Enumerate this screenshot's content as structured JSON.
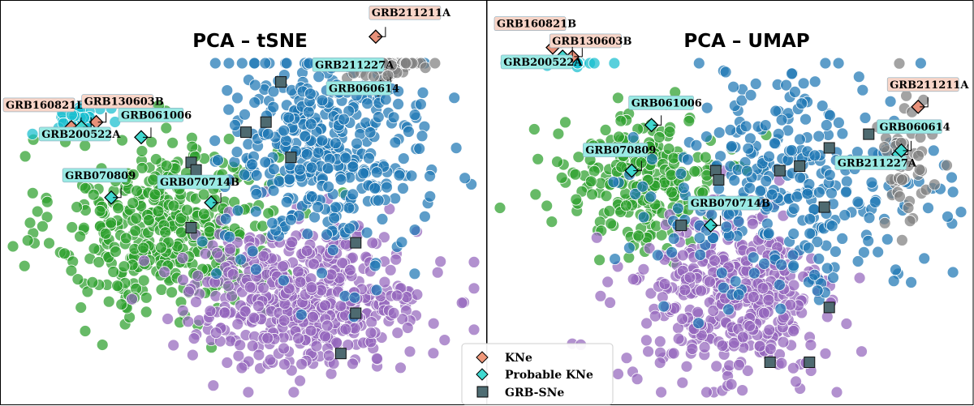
{
  "chart_data": [
    {
      "type": "scatter",
      "title": "PCA – tSNE",
      "xlabel": "",
      "ylabel": "",
      "grid": false,
      "legend_placement": "bottom-center",
      "clusters": [
        {
          "color": "#2ca02c",
          "center": [
            -18,
            -8
          ],
          "spread": [
            11,
            9
          ],
          "count": 440
        },
        {
          "color": "#9467bd",
          "center": [
            10,
            -22
          ],
          "spread": [
            12,
            7
          ],
          "count": 520
        },
        {
          "color": "#1f77b4",
          "center": [
            14,
            8
          ],
          "spread": [
            10,
            11
          ],
          "count": 430
        },
        {
          "color": "#7f7f7f",
          "center": [
            26,
            26
          ],
          "spread": [
            4,
            3
          ],
          "count": 55
        },
        {
          "color": "#17becf",
          "center": [
            -35,
            14
          ],
          "spread": [
            2.5,
            1.2
          ],
          "count": 35
        }
      ],
      "kne": [
        {
          "label": "GRB211211A",
          "x": 24,
          "y": 30
        },
        {
          "label": "GRB160821B",
          "x": -37,
          "y": 12
        },
        {
          "label": "GRB130603B",
          "x": -32,
          "y": 13
        }
      ],
      "probable_kne": [
        {
          "label": "GRB211227A",
          "x": 25,
          "y": 20
        },
        {
          "label": "GRB060614",
          "x": 24.5,
          "y": 19.5
        },
        {
          "label": "GRB200522A",
          "x": -35,
          "y": 12
        },
        {
          "label": "GRB061006",
          "x": -23,
          "y": 10
        },
        {
          "label": "GRB070809",
          "x": -29,
          "y": -2
        },
        {
          "label": "GRB070714B",
          "x": -9,
          "y": -3
        }
      ],
      "grb_sne": [
        {
          "x": 5,
          "y": 21
        },
        {
          "x": 2,
          "y": 13
        },
        {
          "x": -2,
          "y": 11
        },
        {
          "x": 7,
          "y": 6
        },
        {
          "x": -13,
          "y": 5
        },
        {
          "x": -12,
          "y": 3.5
        },
        {
          "x": -13,
          "y": -8
        },
        {
          "x": 20,
          "y": -11
        },
        {
          "x": 20,
          "y": -25
        },
        {
          "x": 17,
          "y": -33
        }
      ]
    },
    {
      "type": "scatter",
      "title": "PCA – UMAP",
      "xlabel": "",
      "ylabel": "",
      "grid": false,
      "legend_placement": "bottom-center",
      "clusters": [
        {
          "color": "#2ca02c",
          "center": [
            -5,
            6
          ],
          "spread": [
            4,
            3.5
          ],
          "count": 240
        },
        {
          "color": "#9467bd",
          "center": [
            4,
            -7
          ],
          "spread": [
            5,
            5
          ],
          "count": 420
        },
        {
          "color": "#1f77b4",
          "center": [
            10,
            5
          ],
          "spread": [
            7,
            6
          ],
          "count": 320
        },
        {
          "color": "#7f7f7f",
          "center": [
            22,
            9
          ],
          "spread": [
            1.5,
            4
          ],
          "count": 50
        },
        {
          "color": "#17becf",
          "center": [
            -13,
            20
          ],
          "spread": [
            2.2,
            0.9
          ],
          "count": 30
        }
      ],
      "kne": [
        {
          "label": "GRB211211A",
          "x": 23,
          "y": 14
        },
        {
          "label": "GRB160821B",
          "x": -14,
          "y": 20.5
        },
        {
          "label": "GRB130603B",
          "x": -12,
          "y": 19.5
        }
      ],
      "probable_kne": [
        {
          "label": "GRB211227A",
          "x": 21,
          "y": 8.8
        },
        {
          "label": "GRB060614",
          "x": 21.3,
          "y": 9.2
        },
        {
          "label": "GRB200522A",
          "x": -13,
          "y": 19.5
        },
        {
          "label": "GRB061006",
          "x": -4,
          "y": 12
        },
        {
          "label": "GRB070809",
          "x": -6,
          "y": 7
        },
        {
          "label": "GRB070714B",
          "x": 2,
          "y": 1
        }
      ],
      "grb_sne": [
        {
          "x": 18,
          "y": 11
        },
        {
          "x": 14,
          "y": 9.5
        },
        {
          "x": 2.5,
          "y": 7
        },
        {
          "x": 2.8,
          "y": 6
        },
        {
          "x": 9,
          "y": 7
        },
        {
          "x": 11,
          "y": 7.5
        },
        {
          "x": 13.5,
          "y": 3
        },
        {
          "x": -1,
          "y": 1
        },
        {
          "x": 14,
          "y": -8
        },
        {
          "x": 8,
          "y": -14
        },
        {
          "x": 12,
          "y": -14
        }
      ]
    }
  ],
  "legend": {
    "items": [
      {
        "label": "KNe",
        "marker": "diamond",
        "color": "#f0987a"
      },
      {
        "label": "Probable KNe",
        "marker": "diamond",
        "color": "#3fd9d0"
      },
      {
        "label": "GRB-SNe",
        "marker": "square",
        "color": "#4f6d73"
      }
    ]
  },
  "colors": {
    "kne": "#e8917a",
    "probable_kne": "#40d8cf",
    "grb_sne": "#4e6a70",
    "kne_label_bg": "#f8d5c8",
    "probable_label_bg": "#9aeae4"
  }
}
